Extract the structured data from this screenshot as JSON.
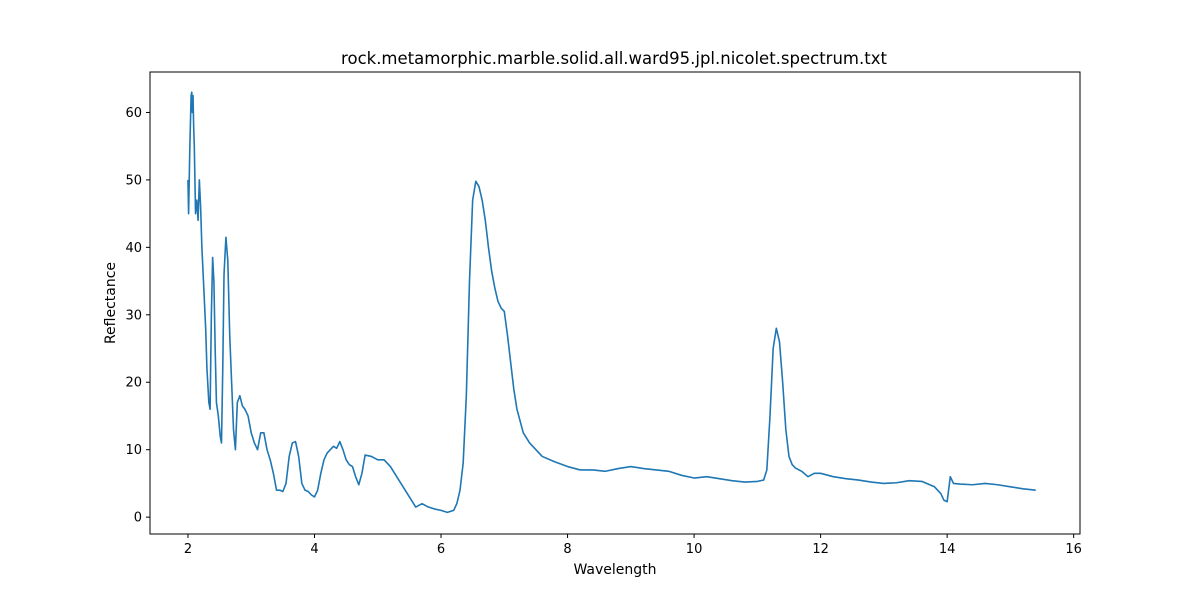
{
  "chart_data": {
    "type": "line",
    "title": "rock.metamorphic.marble.solid.all.ward95.jpl.nicolet.spectrum.txt",
    "xlabel": "Wavelength",
    "ylabel": "Reflectance",
    "xlim": [
      1.4,
      16.1
    ],
    "ylim": [
      -2.5,
      66
    ],
    "xticks": [
      "2",
      "4",
      "6",
      "8",
      "10",
      "12",
      "14",
      "16"
    ],
    "yticks": [
      "0",
      "10",
      "20",
      "30",
      "40",
      "50",
      "60"
    ],
    "grid": false,
    "series": [
      {
        "color": "#1f77b4",
        "x": [
          2.0,
          2.01,
          2.03,
          2.05,
          2.06,
          2.07,
          2.08,
          2.09,
          2.1,
          2.11,
          2.12,
          2.14,
          2.16,
          2.18,
          2.2,
          2.22,
          2.25,
          2.28,
          2.3,
          2.33,
          2.35,
          2.37,
          2.39,
          2.41,
          2.43,
          2.45,
          2.48,
          2.51,
          2.53,
          2.55,
          2.57,
          2.6,
          2.63,
          2.66,
          2.69,
          2.72,
          2.75,
          2.78,
          2.82,
          2.86,
          2.9,
          2.95,
          3.0,
          3.05,
          3.1,
          3.15,
          3.2,
          3.25,
          3.3,
          3.35,
          3.4,
          3.45,
          3.5,
          3.55,
          3.6,
          3.65,
          3.7,
          3.75,
          3.8,
          3.85,
          3.9,
          3.95,
          4.0,
          4.05,
          4.1,
          4.15,
          4.2,
          4.25,
          4.3,
          4.35,
          4.4,
          4.45,
          4.5,
          4.55,
          4.6,
          4.65,
          4.7,
          4.75,
          4.8,
          4.9,
          5.0,
          5.1,
          5.2,
          5.3,
          5.4,
          5.5,
          5.6,
          5.7,
          5.8,
          5.9,
          6.0,
          6.1,
          6.2,
          6.25,
          6.3,
          6.35,
          6.4,
          6.45,
          6.5,
          6.55,
          6.6,
          6.65,
          6.7,
          6.75,
          6.8,
          6.85,
          6.9,
          6.95,
          7.0,
          7.05,
          7.1,
          7.15,
          7.2,
          7.3,
          7.4,
          7.5,
          7.6,
          7.8,
          8.0,
          8.2,
          8.4,
          8.6,
          8.8,
          9.0,
          9.2,
          9.4,
          9.6,
          9.8,
          10.0,
          10.2,
          10.4,
          10.6,
          10.8,
          11.0,
          11.1,
          11.15,
          11.2,
          11.25,
          11.3,
          11.35,
          11.4,
          11.45,
          11.5,
          11.55,
          11.6,
          11.7,
          11.8,
          11.9,
          12.0,
          12.2,
          12.4,
          12.6,
          12.8,
          13.0,
          13.2,
          13.4,
          13.6,
          13.8,
          13.9,
          13.95,
          14.0,
          14.05,
          14.1,
          14.2,
          14.4,
          14.6,
          14.8,
          15.0,
          15.2,
          15.4
        ],
        "y": [
          50.0,
          45.0,
          55.0,
          62.5,
          63.0,
          60.0,
          62.5,
          58.0,
          55.0,
          50.0,
          45.0,
          47.0,
          44.0,
          50.0,
          46.0,
          40.0,
          34.0,
          28.0,
          22.0,
          17.0,
          16.0,
          30.0,
          38.5,
          35.0,
          25.0,
          17.0,
          15.0,
          12.0,
          11.0,
          22.0,
          36.0,
          41.5,
          38.0,
          27.0,
          20.0,
          13.0,
          10.0,
          17.0,
          18.0,
          16.5,
          16.0,
          15.0,
          12.5,
          11.0,
          10.0,
          12.5,
          12.5,
          10.0,
          8.5,
          6.5,
          4.0,
          4.0,
          3.8,
          5.0,
          9.0,
          11.0,
          11.2,
          9.0,
          5.0,
          4.0,
          3.8,
          3.3,
          3.0,
          4.0,
          6.5,
          8.5,
          9.5,
          10.0,
          10.5,
          10.2,
          11.2,
          10.0,
          8.5,
          7.8,
          7.5,
          6.0,
          4.8,
          6.5,
          9.2,
          9.0,
          8.5,
          8.5,
          7.5,
          6.0,
          4.5,
          3.0,
          1.5,
          2.0,
          1.5,
          1.2,
          1.0,
          0.7,
          1.0,
          2.0,
          4.0,
          8.0,
          18.0,
          35.0,
          47.0,
          49.8,
          49.0,
          47.0,
          44.0,
          40.0,
          36.5,
          34.0,
          32.0,
          31.0,
          30.5,
          27.0,
          23.0,
          19.0,
          16.0,
          12.5,
          11.0,
          10.0,
          9.0,
          8.2,
          7.5,
          7.0,
          7.0,
          6.8,
          7.2,
          7.5,
          7.2,
          7.0,
          6.8,
          6.2,
          5.8,
          6.0,
          5.7,
          5.4,
          5.2,
          5.3,
          5.5,
          7.0,
          15.0,
          25.0,
          28.0,
          26.0,
          20.0,
          13.0,
          9.0,
          7.8,
          7.3,
          6.8,
          6.0,
          6.5,
          6.5,
          6.0,
          5.7,
          5.5,
          5.2,
          5.0,
          5.1,
          5.4,
          5.3,
          4.5,
          3.5,
          2.5,
          2.3,
          6.0,
          5.0,
          4.9,
          4.8,
          5.0,
          4.8,
          4.5,
          4.2,
          4.0
        ]
      }
    ]
  }
}
